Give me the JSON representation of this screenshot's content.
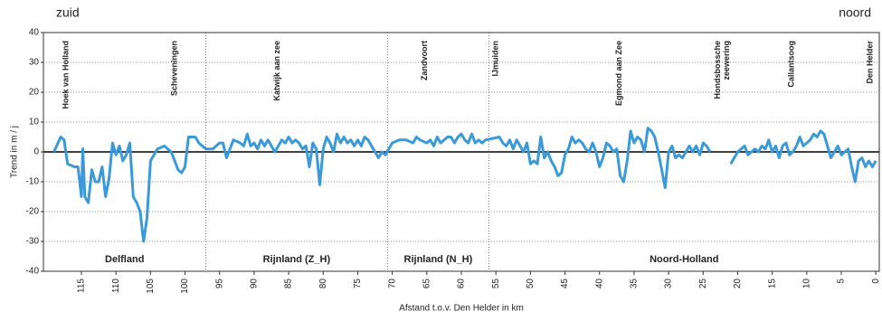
{
  "chart_data": {
    "type": "line",
    "corner_left": "zuid",
    "corner_right": "noord",
    "xlabel": "Afstand t.o.v. Den Helder in km",
    "ylabel": "Trend in m / j",
    "xlim": [
      120.5,
      -0.5
    ],
    "ylim": [
      -40,
      40
    ],
    "yticks": [
      -40,
      -30,
      -20,
      -10,
      0,
      10,
      20,
      30,
      40
    ],
    "xticks": [
      115,
      110,
      105,
      100,
      95,
      90,
      85,
      80,
      75,
      70,
      65,
      60,
      55,
      50,
      45,
      40,
      35,
      30,
      25,
      20,
      15,
      10,
      5,
      0
    ],
    "grid": true,
    "dividers": [
      97,
      70.7,
      56
    ],
    "regions": [
      "Delfland",
      "Rijnland (Z_H)",
      "Rijnland (N_H)",
      "Noord-Holland"
    ],
    "places": [
      {
        "label": [
          "Hoek van Holland"
        ],
        "km": 117.2
      },
      {
        "label": [
          "Scheveningen"
        ],
        "km": 101.5
      },
      {
        "label": [
          "Katwijk aan zee"
        ],
        "km": 86.6
      },
      {
        "label": [
          "Zandvoort"
        ],
        "km": 65.3
      },
      {
        "label": [
          "IJmuiden"
        ],
        "km": 55.0
      },
      {
        "label": [
          "Egmond aan Zee"
        ],
        "km": 37.1
      },
      {
        "label": [
          "Hondsbossche",
          "zeewering"
        ],
        "km": 22.2
      },
      {
        "label": [
          "Callantsoog"
        ],
        "km": 12.2
      },
      {
        "label": [
          "Den Helder"
        ],
        "km": 0.8
      }
    ],
    "series": [
      {
        "color": "#3a9ad9",
        "x": [
          119,
          118,
          117.5,
          117,
          116,
          115.5,
          115,
          114.8,
          114.5,
          114,
          113.5,
          113,
          112.5,
          112,
          111.5,
          111,
          110.5,
          110,
          109.5,
          109,
          108.5,
          108,
          107.5,
          107,
          106.5,
          106,
          105.5,
          105,
          104,
          103,
          102,
          101,
          100.5,
          100,
          99.5,
          98.5,
          98,
          97,
          96,
          95,
          94.5,
          94,
          93,
          92,
          91.5,
          91,
          90.5,
          90,
          89.5,
          89,
          88.5,
          88,
          87,
          86,
          85.5,
          85,
          84.5,
          84,
          83.5,
          83,
          82.5,
          82,
          81.5,
          81,
          80.5,
          80,
          79.5,
          79,
          78.5,
          78,
          77.5,
          77,
          76.5,
          76,
          75.5,
          75,
          74.5,
          74,
          73.5,
          73,
          72.5,
          72,
          71.5,
          71,
          70.5,
          70,
          69,
          68,
          67,
          66.5,
          66,
          65,
          64.5,
          64,
          63.5,
          63,
          62,
          61.5,
          61,
          60.5,
          60,
          59.5,
          59,
          58.5,
          58,
          57.5,
          57,
          56.5,
          54.5,
          54,
          53.5,
          53,
          52.5,
          52,
          51.5,
          51,
          50.5,
          50,
          49.5,
          49,
          48.5,
          48,
          47.5,
          47,
          46.5,
          46,
          45.5,
          45,
          44.5,
          44,
          43.5,
          43,
          42.5,
          42,
          41.5,
          41,
          40.5,
          40,
          39.5,
          39,
          38.5,
          38,
          37.5,
          37,
          36.5,
          36,
          35.5,
          35,
          34.5,
          34,
          33.5,
          33,
          32.5,
          32,
          31.5,
          31,
          30.5,
          30,
          29.5,
          29,
          28.5,
          28,
          27.5,
          27,
          26.5,
          26,
          25.5,
          25,
          24.5,
          24,
          22.5,
          21,
          20.5,
          20,
          19.5,
          19,
          18.5,
          18,
          17.5,
          17,
          16.5,
          16,
          15.5,
          15,
          14.5,
          14,
          13.5,
          13,
          12.5,
          12,
          11.5,
          11,
          10.5,
          10,
          9.5,
          9,
          8.5,
          8,
          7.5,
          7,
          6.5,
          6,
          5.5,
          5,
          4.5,
          4,
          3.5,
          3,
          2.5,
          2,
          1.5,
          1,
          0.5,
          0
        ],
        "values": [
          0,
          5,
          4,
          -4,
          -5,
          -5,
          -15,
          1,
          -15,
          -17,
          -6,
          -10,
          -10,
          -5,
          -15,
          -9,
          3,
          -1,
          2,
          -3,
          -1,
          3,
          -15,
          -17,
          -20,
          -30,
          -22,
          -3,
          1,
          2,
          0,
          -6,
          -7,
          -5,
          5,
          5,
          3,
          1,
          1,
          3,
          3,
          -2,
          4,
          3,
          2,
          6,
          2,
          3,
          1,
          4,
          2,
          4,
          0,
          4,
          3,
          5,
          3,
          4,
          3,
          1,
          2,
          -5,
          3,
          1,
          -11,
          1,
          5,
          3,
          0,
          6,
          3,
          5,
          3,
          4,
          2,
          4,
          2,
          5,
          4,
          2,
          0,
          -2,
          0,
          -1,
          1,
          3,
          4,
          4,
          3,
          5,
          4,
          3,
          4,
          2,
          5,
          3,
          5,
          5,
          3,
          5,
          6,
          4,
          3,
          6,
          3,
          4,
          3,
          4,
          5,
          3,
          2,
          4,
          1,
          4,
          2,
          0,
          3,
          -4,
          -3,
          -4,
          5,
          -2,
          0,
          -3,
          -5,
          -8,
          -7,
          -1,
          1,
          5,
          3,
          4,
          3,
          1,
          0,
          3,
          0,
          -5,
          -2,
          3,
          2,
          0,
          1,
          -8,
          -10,
          -3,
          7,
          3,
          5,
          4,
          0,
          8,
          7,
          5,
          0,
          -6,
          -12,
          0,
          2,
          -2,
          -1,
          -2,
          0,
          2,
          0,
          2,
          -1,
          3,
          2,
          0,
          null,
          -4,
          -2,
          0,
          1,
          2,
          -1,
          0,
          1,
          0,
          2,
          1,
          4,
          0,
          2,
          -2,
          2,
          3,
          -1,
          0,
          2,
          5,
          2,
          3,
          4,
          6,
          5,
          7,
          6,
          2,
          -2,
          0,
          2,
          -1,
          0,
          1,
          -5,
          -10,
          -3,
          -2,
          -5,
          -3,
          -5,
          -3
        ]
      }
    ]
  }
}
